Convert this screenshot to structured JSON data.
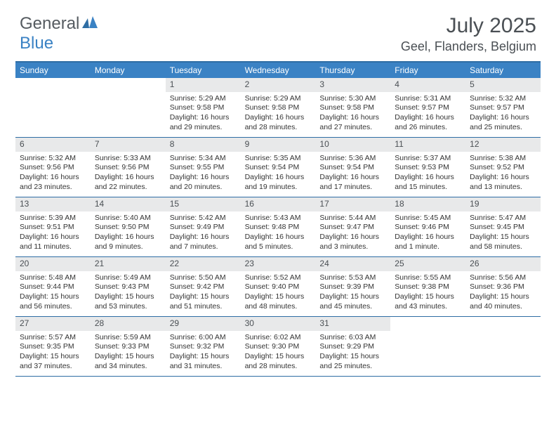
{
  "logo": {
    "text1": "General",
    "text2": "Blue"
  },
  "title": "July 2025",
  "location": "Geel, Flanders, Belgium",
  "colors": {
    "header_blue": "#3a82c4",
    "border_blue": "#2e6da4",
    "daynum_bg": "#e8e9ea",
    "text_dark": "#4a4f54"
  },
  "weekdays": [
    "Sunday",
    "Monday",
    "Tuesday",
    "Wednesday",
    "Thursday",
    "Friday",
    "Saturday"
  ],
  "weeks": [
    [
      null,
      null,
      {
        "n": "1",
        "sr": "Sunrise: 5:29 AM",
        "ss": "Sunset: 9:58 PM",
        "d1": "Daylight: 16 hours",
        "d2": "and 29 minutes."
      },
      {
        "n": "2",
        "sr": "Sunrise: 5:29 AM",
        "ss": "Sunset: 9:58 PM",
        "d1": "Daylight: 16 hours",
        "d2": "and 28 minutes."
      },
      {
        "n": "3",
        "sr": "Sunrise: 5:30 AM",
        "ss": "Sunset: 9:58 PM",
        "d1": "Daylight: 16 hours",
        "d2": "and 27 minutes."
      },
      {
        "n": "4",
        "sr": "Sunrise: 5:31 AM",
        "ss": "Sunset: 9:57 PM",
        "d1": "Daylight: 16 hours",
        "d2": "and 26 minutes."
      },
      {
        "n": "5",
        "sr": "Sunrise: 5:32 AM",
        "ss": "Sunset: 9:57 PM",
        "d1": "Daylight: 16 hours",
        "d2": "and 25 minutes."
      }
    ],
    [
      {
        "n": "6",
        "sr": "Sunrise: 5:32 AM",
        "ss": "Sunset: 9:56 PM",
        "d1": "Daylight: 16 hours",
        "d2": "and 23 minutes."
      },
      {
        "n": "7",
        "sr": "Sunrise: 5:33 AM",
        "ss": "Sunset: 9:56 PM",
        "d1": "Daylight: 16 hours",
        "d2": "and 22 minutes."
      },
      {
        "n": "8",
        "sr": "Sunrise: 5:34 AM",
        "ss": "Sunset: 9:55 PM",
        "d1": "Daylight: 16 hours",
        "d2": "and 20 minutes."
      },
      {
        "n": "9",
        "sr": "Sunrise: 5:35 AM",
        "ss": "Sunset: 9:54 PM",
        "d1": "Daylight: 16 hours",
        "d2": "and 19 minutes."
      },
      {
        "n": "10",
        "sr": "Sunrise: 5:36 AM",
        "ss": "Sunset: 9:54 PM",
        "d1": "Daylight: 16 hours",
        "d2": "and 17 minutes."
      },
      {
        "n": "11",
        "sr": "Sunrise: 5:37 AM",
        "ss": "Sunset: 9:53 PM",
        "d1": "Daylight: 16 hours",
        "d2": "and 15 minutes."
      },
      {
        "n": "12",
        "sr": "Sunrise: 5:38 AM",
        "ss": "Sunset: 9:52 PM",
        "d1": "Daylight: 16 hours",
        "d2": "and 13 minutes."
      }
    ],
    [
      {
        "n": "13",
        "sr": "Sunrise: 5:39 AM",
        "ss": "Sunset: 9:51 PM",
        "d1": "Daylight: 16 hours",
        "d2": "and 11 minutes."
      },
      {
        "n": "14",
        "sr": "Sunrise: 5:40 AM",
        "ss": "Sunset: 9:50 PM",
        "d1": "Daylight: 16 hours",
        "d2": "and 9 minutes."
      },
      {
        "n": "15",
        "sr": "Sunrise: 5:42 AM",
        "ss": "Sunset: 9:49 PM",
        "d1": "Daylight: 16 hours",
        "d2": "and 7 minutes."
      },
      {
        "n": "16",
        "sr": "Sunrise: 5:43 AM",
        "ss": "Sunset: 9:48 PM",
        "d1": "Daylight: 16 hours",
        "d2": "and 5 minutes."
      },
      {
        "n": "17",
        "sr": "Sunrise: 5:44 AM",
        "ss": "Sunset: 9:47 PM",
        "d1": "Daylight: 16 hours",
        "d2": "and 3 minutes."
      },
      {
        "n": "18",
        "sr": "Sunrise: 5:45 AM",
        "ss": "Sunset: 9:46 PM",
        "d1": "Daylight: 16 hours",
        "d2": "and 1 minute."
      },
      {
        "n": "19",
        "sr": "Sunrise: 5:47 AM",
        "ss": "Sunset: 9:45 PM",
        "d1": "Daylight: 15 hours",
        "d2": "and 58 minutes."
      }
    ],
    [
      {
        "n": "20",
        "sr": "Sunrise: 5:48 AM",
        "ss": "Sunset: 9:44 PM",
        "d1": "Daylight: 15 hours",
        "d2": "and 56 minutes."
      },
      {
        "n": "21",
        "sr": "Sunrise: 5:49 AM",
        "ss": "Sunset: 9:43 PM",
        "d1": "Daylight: 15 hours",
        "d2": "and 53 minutes."
      },
      {
        "n": "22",
        "sr": "Sunrise: 5:50 AM",
        "ss": "Sunset: 9:42 PM",
        "d1": "Daylight: 15 hours",
        "d2": "and 51 minutes."
      },
      {
        "n": "23",
        "sr": "Sunrise: 5:52 AM",
        "ss": "Sunset: 9:40 PM",
        "d1": "Daylight: 15 hours",
        "d2": "and 48 minutes."
      },
      {
        "n": "24",
        "sr": "Sunrise: 5:53 AM",
        "ss": "Sunset: 9:39 PM",
        "d1": "Daylight: 15 hours",
        "d2": "and 45 minutes."
      },
      {
        "n": "25",
        "sr": "Sunrise: 5:55 AM",
        "ss": "Sunset: 9:38 PM",
        "d1": "Daylight: 15 hours",
        "d2": "and 43 minutes."
      },
      {
        "n": "26",
        "sr": "Sunrise: 5:56 AM",
        "ss": "Sunset: 9:36 PM",
        "d1": "Daylight: 15 hours",
        "d2": "and 40 minutes."
      }
    ],
    [
      {
        "n": "27",
        "sr": "Sunrise: 5:57 AM",
        "ss": "Sunset: 9:35 PM",
        "d1": "Daylight: 15 hours",
        "d2": "and 37 minutes."
      },
      {
        "n": "28",
        "sr": "Sunrise: 5:59 AM",
        "ss": "Sunset: 9:33 PM",
        "d1": "Daylight: 15 hours",
        "d2": "and 34 minutes."
      },
      {
        "n": "29",
        "sr": "Sunrise: 6:00 AM",
        "ss": "Sunset: 9:32 PM",
        "d1": "Daylight: 15 hours",
        "d2": "and 31 minutes."
      },
      {
        "n": "30",
        "sr": "Sunrise: 6:02 AM",
        "ss": "Sunset: 9:30 PM",
        "d1": "Daylight: 15 hours",
        "d2": "and 28 minutes."
      },
      {
        "n": "31",
        "sr": "Sunrise: 6:03 AM",
        "ss": "Sunset: 9:29 PM",
        "d1": "Daylight: 15 hours",
        "d2": "and 25 minutes."
      },
      null,
      null
    ]
  ]
}
